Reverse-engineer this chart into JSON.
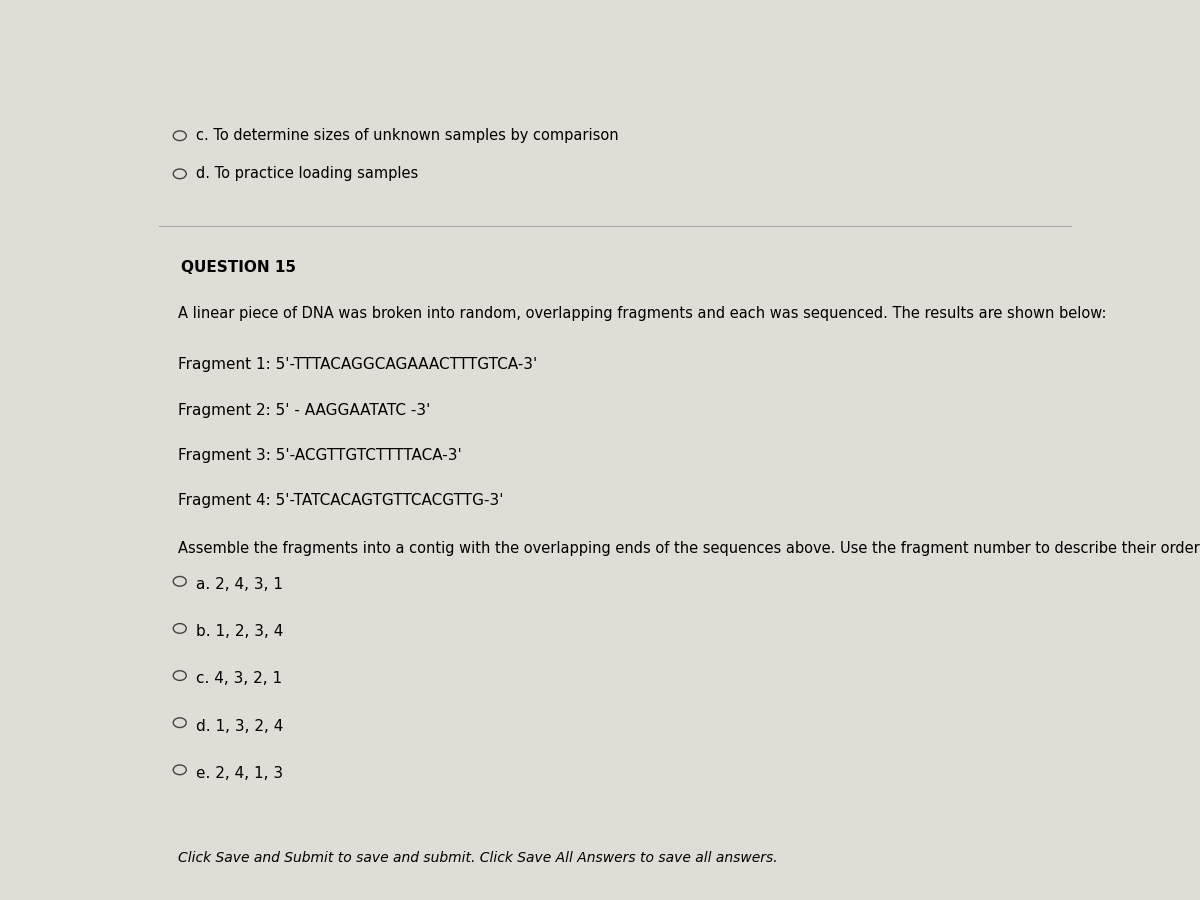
{
  "background_color": "#d0cec8",
  "text_color": "#000000",
  "page_bg": "#e0ddd7",
  "prev_options": [
    "c. To determine sizes of unknown samples by comparison",
    "d. To practice loading samples"
  ],
  "question_number": "QUESTION 15",
  "question_text": "A linear piece of DNA was broken into random, overlapping fragments and each was sequenced. The results are shown below:",
  "fragments": [
    "Fragment 1: 5'-TTTACAGGCAGAAACTTTGTCA-3'",
    "Fragment 2: 5' - AAGGAATATC -3'",
    "Fragment 3: 5'-ACGTTGTCTTTTACA-3'",
    "Fragment 4: 5'-TATCACAGTGTTCACGTTG-3'"
  ],
  "assemble_text": "Assemble the fragments into a contig with the overlapping ends of the sequences above. Use the fragment number to describe their order.",
  "options": [
    "a. 2, 4, 3, 1",
    "b. 1, 2, 3, 4",
    "c. 4, 3, 2, 1",
    "d. 1, 3, 2, 4",
    "e. 2, 4, 1, 3"
  ],
  "footer_text": "Click Save and Submit to save and submit. Click Save All Answers to save all answers.",
  "divider_color": "#aaaaaa",
  "question_label_fontsize": 11,
  "body_fontsize": 10.5,
  "fragment_fontsize": 11,
  "option_fontsize": 11,
  "footer_fontsize": 10
}
